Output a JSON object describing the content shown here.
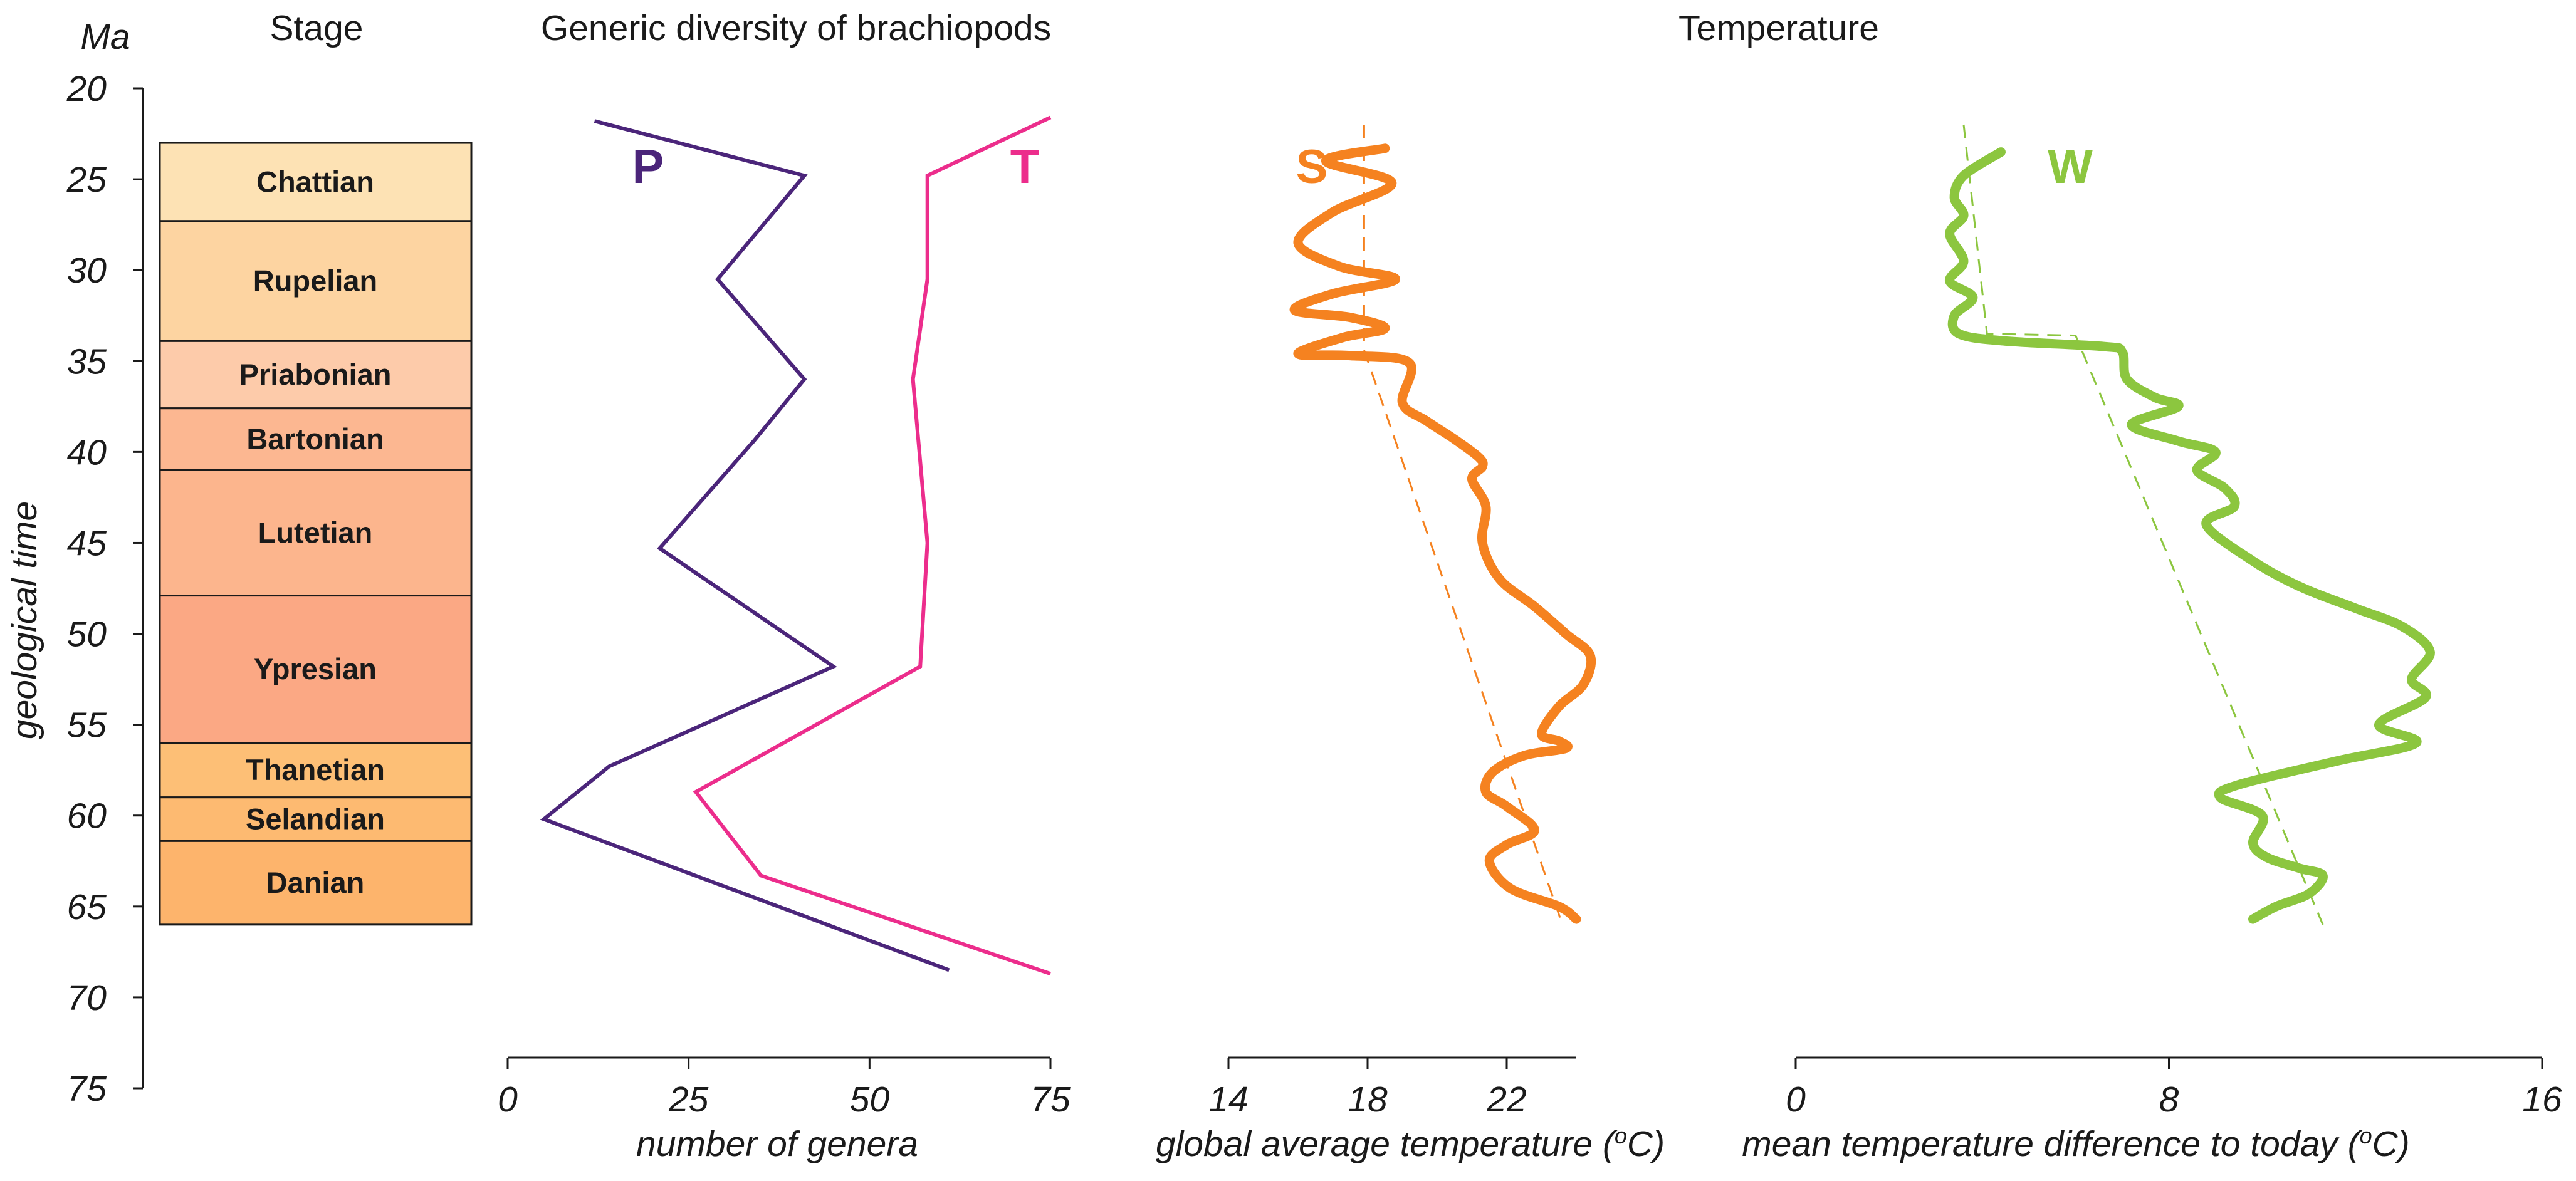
{
  "chart_data": [
    {
      "id": "time_axis",
      "type": "axis",
      "unit_label": "Ma",
      "ylabel": "geological time",
      "ticks": [
        20,
        25,
        30,
        35,
        40,
        45,
        50,
        55,
        60,
        65,
        70,
        75
      ],
      "ylim": [
        20,
        75
      ]
    },
    {
      "id": "stages",
      "type": "table",
      "title": "Stage",
      "stages": [
        {
          "name": "Chattian",
          "start": 23.0,
          "end": 27.3,
          "color": "#fde2b4"
        },
        {
          "name": "Rupelian",
          "start": 27.3,
          "end": 33.9,
          "color": "#fdd4a1"
        },
        {
          "name": "Priabonian",
          "start": 33.9,
          "end": 37.6,
          "color": "#fdcbaa"
        },
        {
          "name": "Bartonian",
          "start": 37.6,
          "end": 41.0,
          "color": "#fcb791"
        },
        {
          "name": "Lutetian",
          "start": 41.0,
          "end": 47.9,
          "color": "#fcb58d"
        },
        {
          "name": "Ypresian",
          "start": 47.9,
          "end": 56.0,
          "color": "#fba884"
        },
        {
          "name": "Thanetian",
          "start": 56.0,
          "end": 59.0,
          "color": "#fdbf76"
        },
        {
          "name": "Selandian",
          "start": 59.0,
          "end": 61.4,
          "color": "#fdba71"
        },
        {
          "name": "Danian",
          "start": 61.4,
          "end": 66.0,
          "color": "#fdb46c"
        }
      ]
    },
    {
      "id": "brachiopods",
      "type": "line",
      "title": "Generic diversity of brachiopods",
      "xlabel": "number of genera",
      "xlim": [
        0,
        75
      ],
      "xticks": [
        0,
        25,
        50,
        75
      ],
      "series": [
        {
          "name": "P",
          "color": "#4b257a",
          "points": [
            [
              12,
              21.8
            ],
            [
              41,
              24.8
            ],
            [
              29,
              30.5
            ],
            [
              41,
              36.0
            ],
            [
              34,
              39.4
            ],
            [
              21,
              45.3
            ],
            [
              45,
              51.8
            ],
            [
              14,
              57.3
            ],
            [
              5,
              60.2
            ],
            [
              61,
              68.5
            ]
          ]
        },
        {
          "name": "T",
          "color": "#ec2d8c",
          "points": [
            [
              75,
              21.6
            ],
            [
              58,
              24.8
            ],
            [
              58,
              30.5
            ],
            [
              56,
              36.0
            ],
            [
              58,
              45.0
            ],
            [
              57,
              51.8
            ],
            [
              26,
              58.7
            ],
            [
              35,
              63.3
            ],
            [
              75,
              68.7
            ]
          ]
        }
      ]
    },
    {
      "id": "global_temp",
      "type": "line",
      "title": "Temperature",
      "xlabel": "global average temperature (",
      "xlabel_sup": "o",
      "xlabel_end": "C)",
      "xlim": [
        14,
        24
      ],
      "xticks": [
        14,
        18,
        22
      ],
      "series": [
        {
          "name": "S",
          "color": "#f58220",
          "points": [
            [
              18.5,
              23.3
            ],
            [
              16.8,
              24.0
            ],
            [
              18.7,
              25.2
            ],
            [
              17.0,
              26.8
            ],
            [
              16.0,
              28.5
            ],
            [
              17.2,
              29.8
            ],
            [
              18.8,
              30.5
            ],
            [
              17.0,
              31.3
            ],
            [
              15.9,
              32.2
            ],
            [
              17.5,
              32.6
            ],
            [
              18.5,
              33.2
            ],
            [
              17.3,
              33.7
            ],
            [
              16.0,
              34.6
            ],
            [
              17.5,
              34.7
            ],
            [
              19.2,
              35.1
            ],
            [
              19.0,
              37.3
            ],
            [
              19.7,
              38.3
            ],
            [
              20.5,
              39.3
            ],
            [
              21.2,
              40.3
            ],
            [
              21.3,
              40.8
            ],
            [
              21.0,
              41.5
            ],
            [
              21.4,
              43.0
            ],
            [
              21.3,
              45.0
            ],
            [
              21.8,
              47.0
            ],
            [
              22.8,
              48.5
            ],
            [
              23.7,
              50.0
            ],
            [
              24.4,
              51.2
            ],
            [
              24.2,
              52.8
            ],
            [
              23.5,
              54.0
            ],
            [
              23.0,
              55.5
            ],
            [
              23.5,
              55.9
            ],
            [
              23.7,
              56.3
            ],
            [
              22.5,
              56.7
            ],
            [
              21.6,
              57.6
            ],
            [
              21.4,
              58.7
            ],
            [
              22.0,
              59.5
            ],
            [
              22.8,
              60.8
            ],
            [
              22.0,
              61.6
            ],
            [
              21.5,
              62.5
            ],
            [
              22.1,
              64.0
            ],
            [
              23.5,
              65.0
            ],
            [
              24.0,
              65.7
            ]
          ]
        }
      ],
      "trend": [
        [
          17.9,
          22.0
        ],
        [
          17.9,
          34.4
        ],
        [
          23.6,
          66.0
        ]
      ]
    },
    {
      "id": "temp_diff",
      "type": "line",
      "xlabel": "mean temperature difference to today (",
      "xlabel_sup": "o",
      "xlabel_end": "C)",
      "xlim": [
        0,
        16
      ],
      "xticks": [
        0,
        8,
        16
      ],
      "series": [
        {
          "name": "W",
          "color": "#8cc63f",
          "points": [
            [
              4.4,
              23.5
            ],
            [
              3.6,
              24.8
            ],
            [
              3.4,
              26.0
            ],
            [
              3.6,
              27.0
            ],
            [
              3.3,
              28.0
            ],
            [
              3.6,
              29.5
            ],
            [
              3.3,
              30.6
            ],
            [
              3.8,
              31.5
            ],
            [
              3.4,
              32.5
            ],
            [
              3.5,
              33.5
            ],
            [
              4.5,
              33.9
            ],
            [
              6.6,
              34.2
            ],
            [
              7.0,
              34.5
            ],
            [
              7.1,
              36.0
            ],
            [
              7.7,
              37.0
            ],
            [
              8.2,
              37.5
            ],
            [
              7.2,
              38.5
            ],
            [
              8.2,
              39.4
            ],
            [
              9.0,
              40.0
            ],
            [
              8.6,
              41.0
            ],
            [
              9.2,
              42.0
            ],
            [
              9.4,
              43.0
            ],
            [
              8.8,
              44.0
            ],
            [
              9.8,
              46.0
            ],
            [
              10.8,
              47.4
            ],
            [
              12.0,
              48.6
            ],
            [
              13.0,
              49.6
            ],
            [
              13.6,
              51.0
            ],
            [
              13.2,
              52.5
            ],
            [
              13.5,
              53.5
            ],
            [
              12.5,
              55.0
            ],
            [
              13.3,
              56.0
            ],
            [
              11.6,
              57.0
            ],
            [
              9.5,
              58.3
            ],
            [
              9.1,
              59.0
            ],
            [
              10.0,
              60.0
            ],
            [
              9.8,
              61.5
            ],
            [
              10.1,
              62.3
            ],
            [
              10.8,
              62.9
            ],
            [
              11.3,
              63.3
            ],
            [
              11.0,
              64.3
            ],
            [
              10.3,
              65.0
            ],
            [
              9.8,
              65.7
            ]
          ]
        }
      ],
      "trend": [
        [
          3.6,
          22.0
        ],
        [
          4.1,
          33.5
        ],
        [
          6.0,
          33.6
        ],
        [
          11.3,
          66.0
        ]
      ]
    }
  ]
}
